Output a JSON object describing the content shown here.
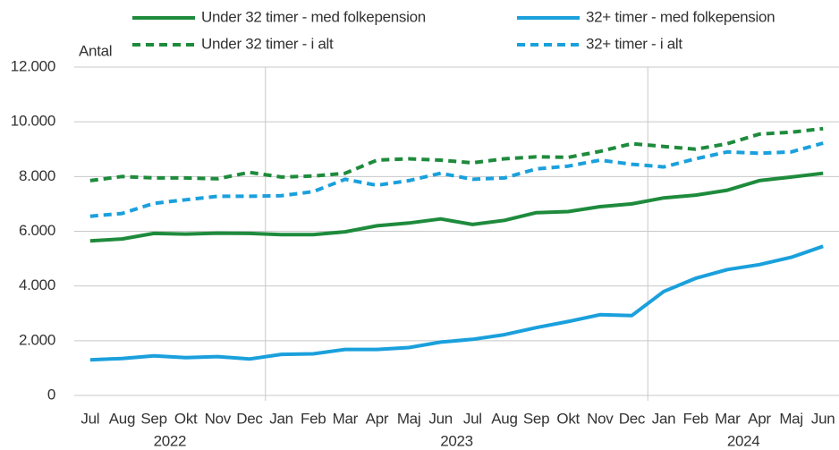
{
  "chart_data": {
    "type": "line",
    "y_label": "Antal",
    "categories": [
      "Jul",
      "Aug",
      "Sep",
      "Okt",
      "Nov",
      "Dec",
      "Jan",
      "Feb",
      "Mar",
      "Apr",
      "Maj",
      "Jun",
      "Jul",
      "Aug",
      "Sep",
      "Okt",
      "Nov",
      "Dec",
      "Jan",
      "Feb",
      "Mar",
      "Apr",
      "Maj",
      "Jun"
    ],
    "groups": [
      {
        "label": "2022",
        "count": 6
      },
      {
        "label": "2023",
        "count": 12
      },
      {
        "label": "2024",
        "count": 6
      }
    ],
    "ylim": [
      0,
      12000
    ],
    "yticks": [
      0,
      {
        "value": 2000,
        "label": "2.000"
      },
      {
        "value": 4000,
        "label": "4.000"
      },
      {
        "value": 6000,
        "label": "6.000"
      },
      {
        "value": 8000,
        "label": "8.000"
      },
      {
        "value": 10000,
        "label": "10.000"
      },
      {
        "value": 12000,
        "label": "12.000"
      }
    ],
    "grid": true,
    "series": [
      {
        "name": "Under 32 timer - med folkepension",
        "color": "#1e8b3c",
        "dashed": false,
        "values": [
          5650,
          5720,
          5920,
          5900,
          5930,
          5920,
          5880,
          5880,
          5980,
          6200,
          6300,
          6450,
          6250,
          6400,
          6680,
          6720,
          6900,
          7000,
          7220,
          7320,
          7500,
          7850,
          7980,
          8120
        ]
      },
      {
        "name": "32+ timer - med folkepension",
        "color": "#1aa0dc",
        "dashed": false,
        "values": [
          1300,
          1350,
          1450,
          1380,
          1420,
          1330,
          1500,
          1520,
          1680,
          1680,
          1750,
          1950,
          2050,
          2220,
          2480,
          2700,
          2950,
          2920,
          3800,
          4280,
          4600,
          4780,
          5050,
          5450
        ]
      },
      {
        "name": "Under 32 timer - i alt",
        "color": "#1e8b3c",
        "dashed": true,
        "values": [
          7850,
          8000,
          7950,
          7950,
          7920,
          8150,
          7980,
          8020,
          8120,
          8600,
          8650,
          8600,
          8500,
          8650,
          8720,
          8700,
          8920,
          9200,
          9100,
          9000,
          9200,
          9550,
          9620,
          9750
        ]
      },
      {
        "name": "32+ timer - i alt",
        "color": "#1aa0dc",
        "dashed": true,
        "values": [
          6550,
          6650,
          7020,
          7150,
          7280,
          7280,
          7300,
          7450,
          7900,
          7680,
          7850,
          8120,
          7900,
          7950,
          8280,
          8380,
          8600,
          8450,
          8350,
          8650,
          8900,
          8850,
          8900,
          9220
        ]
      }
    ]
  }
}
